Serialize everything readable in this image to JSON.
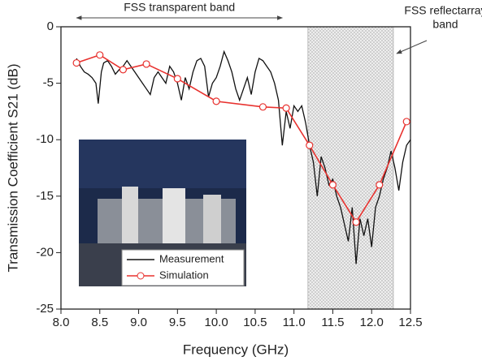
{
  "chart_data": {
    "type": "line",
    "xlabel": "Frequency (GHz)",
    "ylabel": "Transmission Coefficient S21 (dB)",
    "xlim": [
      8.0,
      12.5
    ],
    "ylim": [
      -25,
      0
    ],
    "xticks": [
      {
        "value": 8,
        "label": "8.0"
      },
      {
        "value": 8.5,
        "label": "8.5"
      },
      {
        "value": 9,
        "label": "9.0"
      },
      {
        "value": 9.5,
        "label": "9.5"
      },
      {
        "value": 10,
        "label": "10.0"
      },
      {
        "value": 10.5,
        "label": "10.5"
      },
      {
        "value": 11,
        "label": "11.0"
      },
      {
        "value": 11.5,
        "label": "11.5"
      },
      {
        "value": 12,
        "label": "12.0"
      },
      {
        "value": 12.5,
        "label": "12.5"
      }
    ],
    "yticks": [
      0,
      -5,
      -10,
      -15,
      -20,
      -25
    ],
    "legend": "lower left",
    "shaded_band": [
      11.18,
      12.28
    ],
    "transparent_band": {
      "text": "FSS transparent band",
      "range": [
        8.2,
        10.85
      ]
    },
    "reflectarray_label": [
      "FSS reflectarray",
      "band"
    ],
    "series": [
      {
        "name": "Measurement",
        "color": "#111111",
        "marker": false,
        "x": [
          8.2,
          8.25,
          8.3,
          8.35,
          8.4,
          8.45,
          8.48,
          8.52,
          8.55,
          8.6,
          8.65,
          8.7,
          8.75,
          8.8,
          8.85,
          8.9,
          8.95,
          9.0,
          9.05,
          9.1,
          9.15,
          9.2,
          9.25,
          9.3,
          9.35,
          9.4,
          9.45,
          9.5,
          9.55,
          9.6,
          9.65,
          9.7,
          9.75,
          9.8,
          9.85,
          9.9,
          9.95,
          10.0,
          10.05,
          10.1,
          10.15,
          10.2,
          10.25,
          10.3,
          10.35,
          10.4,
          10.45,
          10.5,
          10.55,
          10.6,
          10.65,
          10.7,
          10.75,
          10.8,
          10.85,
          10.9,
          10.95,
          11.0,
          11.05,
          11.1,
          11.15,
          11.2,
          11.25,
          11.3,
          11.35,
          11.4,
          11.45,
          11.5,
          11.55,
          11.6,
          11.65,
          11.7,
          11.75,
          11.8,
          11.85,
          11.9,
          11.95,
          12.0,
          12.05,
          12.1,
          12.15,
          12.2,
          12.25,
          12.3,
          12.35,
          12.4,
          12.45,
          12.5
        ],
        "values": [
          -2.8,
          -3.5,
          -4.0,
          -4.2,
          -4.5,
          -5.0,
          -6.8,
          -4.0,
          -3.2,
          -3.0,
          -3.5,
          -4.2,
          -3.8,
          -3.5,
          -3.0,
          -3.5,
          -4.0,
          -4.5,
          -5.0,
          -5.5,
          -6.0,
          -4.5,
          -4.0,
          -4.5,
          -5.0,
          -3.5,
          -4.0,
          -5.0,
          -6.5,
          -4.5,
          -5.5,
          -4.0,
          -3.0,
          -2.8,
          -3.5,
          -6.2,
          -5.0,
          -4.5,
          -3.5,
          -2.2,
          -3.0,
          -4.0,
          -5.5,
          -6.5,
          -5.5,
          -4.5,
          -6.0,
          -4.0,
          -2.8,
          -3.0,
          -3.5,
          -4.0,
          -5.0,
          -6.5,
          -10.5,
          -7.5,
          -9.0,
          -7.0,
          -7.5,
          -7.0,
          -8.5,
          -10.5,
          -12.0,
          -15.0,
          -11.5,
          -12.5,
          -14.0,
          -13.5,
          -15.0,
          -16.0,
          -17.5,
          -19.0,
          -16.0,
          -21.0,
          -17.0,
          -18.5,
          -17.0,
          -19.5,
          -16.0,
          -15.0,
          -13.5,
          -12.5,
          -11.0,
          -12.5,
          -14.5,
          -12.0,
          -10.5,
          -10.0
        ]
      },
      {
        "name": "Simulation",
        "color": "#e8322f",
        "marker": true,
        "x": [
          8.2,
          8.5,
          8.8,
          9.1,
          9.5,
          10.0,
          10.6,
          10.9,
          11.2,
          11.5,
          11.8,
          12.1,
          12.45
        ],
        "values": [
          -3.2,
          -2.5,
          -3.8,
          -3.3,
          -4.6,
          -6.6,
          -7.1,
          -7.2,
          -10.5,
          -14.0,
          -17.3,
          -14.0,
          -8.4
        ]
      }
    ]
  }
}
